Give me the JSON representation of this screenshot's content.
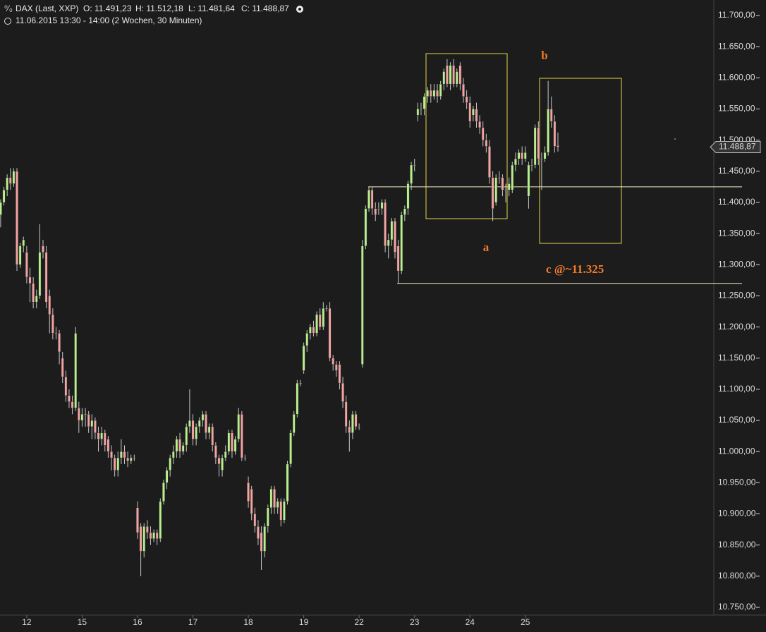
{
  "chart_data": {
    "type": "candlestick",
    "header": {
      "symbol": "DAX (Last, XXP)",
      "open": "O: 11.491,23",
      "high": "H: 11.512,18",
      "low": "L: 11.481,64",
      "close": "C: 11.488,87",
      "period": "11.06.2015 13:30 - 14:00 (2 Wochen, 30 Minuten)"
    },
    "up_color": "#b9f08e",
    "down_color": "#f2a3a3",
    "wick_color": "#c8c8c8",
    "xlim": [
      -0.2,
      218.4
    ],
    "ylim": [
      10710.4,
      11724.9
    ],
    "xticks": [
      {
        "value": 8,
        "label": "12"
      },
      {
        "value": 25,
        "label": "15"
      },
      {
        "value": 42,
        "label": "16"
      },
      {
        "value": 59,
        "label": "17"
      },
      {
        "value": 76,
        "label": "18"
      },
      {
        "value": 93,
        "label": "19"
      },
      {
        "value": 110,
        "label": "22"
      },
      {
        "value": 127,
        "label": "23"
      },
      {
        "value": 144,
        "label": "24"
      },
      {
        "value": 161,
        "label": "25"
      }
    ],
    "yticks": [
      {
        "value": 11700,
        "label": "11.700,00"
      },
      {
        "value": 11650,
        "label": "11.650,00"
      },
      {
        "value": 11600,
        "label": "11.600,00"
      },
      {
        "value": 11550,
        "label": "11.550,00"
      },
      {
        "value": 11500,
        "label": "11.500,00"
      },
      {
        "value": 11450,
        "label": "11.450,00"
      },
      {
        "value": 11400,
        "label": "11.400,00"
      },
      {
        "value": 11350,
        "label": "11.350,00"
      },
      {
        "value": 11300,
        "label": "11.300,00"
      },
      {
        "value": 11250,
        "label": "11.250,00"
      },
      {
        "value": 11200,
        "label": "11.200,00"
      },
      {
        "value": 11150,
        "label": "11.150,00"
      },
      {
        "value": 11100,
        "label": "11.100,00"
      },
      {
        "value": 11050,
        "label": "11.050,00"
      },
      {
        "value": 11000,
        "label": "11.000,00"
      },
      {
        "value": 10950,
        "label": "10.950,00"
      },
      {
        "value": 10900,
        "label": "10.900,00"
      },
      {
        "value": 10850,
        "label": "10.850,00"
      },
      {
        "value": 10800,
        "label": "10.800,00"
      },
      {
        "value": 10750,
        "label": "10.750,00"
      }
    ],
    "last_price": {
      "value": 11488.87,
      "label": "11.488,87"
    },
    "hlines": [
      11425,
      11270
    ],
    "annotations": [
      "a",
      "b",
      "c @~11.325"
    ],
    "ohlc": [
      [
        11380,
        11405,
        11360,
        11400
      ],
      [
        11400,
        11425,
        11395,
        11420
      ],
      [
        11420,
        11445,
        11410,
        11440
      ],
      [
        11440,
        11455,
        11420,
        11430
      ],
      [
        11430,
        11455,
        11425,
        11450
      ],
      [
        11450,
        11455,
        11290,
        11300
      ],
      [
        11300,
        11335,
        11295,
        11330
      ],
      [
        11330,
        11345,
        11320,
        11340
      ],
      [
        11320,
        11330,
        11270,
        11280
      ],
      [
        11280,
        11295,
        11240,
        11270
      ],
      [
        11270,
        11280,
        11230,
        11240
      ],
      [
        11240,
        11260,
        11230,
        11250
      ],
      [
        11250,
        11365,
        11245,
        11320
      ],
      [
        11330,
        11340,
        11310,
        11320
      ],
      [
        11320,
        11330,
        11230,
        11240
      ],
      [
        11250,
        11260,
        11190,
        11220
      ],
      [
        11220,
        11230,
        11180,
        11190
      ],
      [
        11190,
        11200,
        11180,
        11190
      ],
      [
        11190,
        11195,
        11140,
        11160
      ],
      [
        11150,
        11160,
        11110,
        11120
      ],
      [
        11120,
        11130,
        11080,
        11090
      ],
      [
        11090,
        11100,
        11070,
        11080
      ],
      [
        11080,
        11090,
        11060,
        11070
      ],
      [
        11070,
        11200,
        11065,
        11190
      ],
      [
        11070,
        11080,
        11030,
        11050
      ],
      [
        11050,
        11070,
        11040,
        11060
      ],
      [
        11060,
        11070,
        11040,
        11060
      ],
      [
        11060,
        11065,
        11030,
        11040
      ],
      [
        11040,
        11060,
        11020,
        11050
      ],
      [
        11050,
        11055,
        11020,
        11030
      ],
      [
        11030,
        11040,
        11000,
        11020
      ],
      [
        11020,
        11040,
        11010,
        11030
      ],
      [
        11030,
        11035,
        11000,
        11010
      ],
      [
        11020,
        11025,
        10990,
        11000
      ],
      [
        11000,
        11010,
        10970,
        10990
      ],
      [
        10990,
        10995,
        10960,
        10970
      ],
      [
        10970,
        11000,
        10960,
        10990
      ],
      [
        10990,
        11020,
        10980,
        11000
      ],
      [
        11000,
        11010,
        10980,
        10990
      ],
      [
        10990,
        11000,
        10975,
        10985
      ],
      [
        10985,
        10995,
        10980,
        10990
      ],
      [
        10990,
        10995,
        10985,
        10990
      ],
      [
        10910,
        10920,
        10860,
        10870
      ],
      [
        10880,
        10885,
        10800,
        10840
      ],
      [
        10840,
        10885,
        10830,
        10880
      ],
      [
        10880,
        10890,
        10860,
        10870
      ],
      [
        10870,
        10880,
        10850,
        10860
      ],
      [
        10860,
        10875,
        10855,
        10870
      ],
      [
        10870,
        10875,
        10850,
        10860
      ],
      [
        10860,
        10925,
        10855,
        10920
      ],
      [
        10920,
        10955,
        10915,
        10950
      ],
      [
        10950,
        10975,
        10940,
        10970
      ],
      [
        10970,
        10995,
        10960,
        10990
      ],
      [
        10990,
        11010,
        10980,
        11000
      ],
      [
        11000,
        11025,
        10990,
        11020
      ],
      [
        11020,
        11030,
        10990,
        11000
      ],
      [
        11000,
        11015,
        10995,
        11010
      ],
      [
        11010,
        11045,
        11000,
        11040
      ],
      [
        11040,
        11100,
        11030,
        11050
      ],
      [
        11050,
        11060,
        11010,
        11020
      ],
      [
        11020,
        11045,
        11010,
        11040
      ],
      [
        11040,
        11055,
        11030,
        11050
      ],
      [
        11050,
        11065,
        11040,
        11060
      ],
      [
        11060,
        11065,
        11020,
        11030
      ],
      [
        11030,
        11045,
        11020,
        11040
      ],
      [
        11040,
        11045,
        11000,
        11010
      ],
      [
        11010,
        11015,
        10980,
        10990
      ],
      [
        10990,
        10995,
        10960,
        10980
      ],
      [
        10970,
        10995,
        10960,
        10990
      ],
      [
        10990,
        11010,
        10985,
        11000
      ],
      [
        11000,
        11035,
        10995,
        11030
      ],
      [
        11030,
        11035,
        10990,
        11000
      ],
      [
        11000,
        11025,
        10995,
        11020
      ],
      [
        11020,
        11070,
        11015,
        11060
      ],
      [
        11060,
        11065,
        10985,
        10990
      ],
      [
        10990,
        10995,
        10985,
        10990
      ],
      [
        10950,
        10960,
        10910,
        10920
      ],
      [
        10940,
        10945,
        10890,
        10900
      ],
      [
        10900,
        10910,
        10870,
        10880
      ],
      [
        10880,
        10890,
        10850,
        10860
      ],
      [
        10870,
        10880,
        10810,
        10840
      ],
      [
        10840,
        10885,
        10830,
        10880
      ],
      [
        10880,
        10915,
        10870,
        10910
      ],
      [
        10910,
        10945,
        10900,
        10940
      ],
      [
        10940,
        10945,
        10900,
        10910
      ],
      [
        10910,
        10925,
        10900,
        10920
      ],
      [
        10920,
        10925,
        10880,
        10890
      ],
      [
        10890,
        10925,
        10885,
        10920
      ],
      [
        10920,
        10985,
        10915,
        10980
      ],
      [
        10980,
        11035,
        10975,
        11030
      ],
      [
        11030,
        11065,
        11025,
        11060
      ],
      [
        11060,
        11115,
        11055,
        11110
      ],
      [
        11110,
        11115,
        11105,
        11110
      ],
      [
        11130,
        11175,
        11125,
        11170
      ],
      [
        11170,
        11195,
        11160,
        11190
      ],
      [
        11190,
        11205,
        11180,
        11200
      ],
      [
        11200,
        11210,
        11185,
        11190
      ],
      [
        11190,
        11225,
        11185,
        11220
      ],
      [
        11220,
        11230,
        11195,
        11200
      ],
      [
        11200,
        11240,
        11195,
        11230
      ],
      [
        11230,
        11235,
        11225,
        11230
      ],
      [
        11230,
        11240,
        11145,
        11150
      ],
      [
        11150,
        11155,
        11130,
        11140
      ],
      [
        11140,
        11145,
        11120,
        11130
      ],
      [
        11140,
        11145,
        11100,
        11110
      ],
      [
        11110,
        11120,
        11070,
        11080
      ],
      [
        11080,
        11090,
        11030,
        11040
      ],
      [
        11040,
        11050,
        11000,
        11030
      ],
      [
        11030,
        11065,
        11020,
        11060
      ],
      [
        11060,
        11065,
        11035,
        11040
      ],
      [
        11040,
        11045,
        11035,
        11040
      ],
      [
        11140,
        11340,
        11135,
        11330
      ],
      [
        11330,
        11395,
        11325,
        11390
      ],
      [
        11390,
        11425,
        11385,
        11420
      ],
      [
        11420,
        11425,
        11380,
        11390
      ],
      [
        11390,
        11400,
        11370,
        11380
      ],
      [
        11390,
        11400,
        11380,
        11390
      ],
      [
        11390,
        11405,
        11380,
        11400
      ],
      [
        11400,
        11405,
        11320,
        11330
      ],
      [
        11330,
        11350,
        11310,
        11340
      ],
      [
        11340,
        11375,
        11330,
        11370
      ],
      [
        11370,
        11375,
        11310,
        11320
      ],
      [
        11330,
        11340,
        11270,
        11290
      ],
      [
        11290,
        11385,
        11285,
        11380
      ],
      [
        11380,
        11395,
        11370,
        11390
      ],
      [
        11390,
        11435,
        11380,
        11430
      ],
      [
        11430,
        11465,
        11420,
        11460
      ],
      [
        11460,
        11470,
        11450,
        11460
      ],
      [
        11540,
        11560,
        11530,
        11550
      ],
      [
        11550,
        11560,
        11540,
        11550
      ],
      [
        11550,
        11575,
        11540,
        11570
      ],
      [
        11570,
        11585,
        11560,
        11580
      ],
      [
        11580,
        11590,
        11560,
        11570
      ],
      [
        11570,
        11590,
        11565,
        11580
      ],
      [
        11580,
        11590,
        11560,
        11570
      ],
      [
        11570,
        11595,
        11565,
        11590
      ],
      [
        11590,
        11615,
        11580,
        11610
      ],
      [
        11620,
        11630,
        11585,
        11590
      ],
      [
        11590,
        11625,
        11580,
        11620
      ],
      [
        11620,
        11630,
        11585,
        11590
      ],
      [
        11590,
        11615,
        11585,
        11610
      ],
      [
        11620,
        11625,
        11580,
        11590
      ],
      [
        11590,
        11600,
        11560,
        11570
      ],
      [
        11570,
        11580,
        11550,
        11560
      ],
      [
        11560,
        11570,
        11520,
        11530
      ],
      [
        11540,
        11555,
        11530,
        11550
      ],
      [
        11550,
        11560,
        11520,
        11530
      ],
      [
        11530,
        11540,
        11510,
        11520
      ],
      [
        11520,
        11530,
        11490,
        11500
      ],
      [
        11500,
        11510,
        11480,
        11490
      ],
      [
        11490,
        11500,
        11430,
        11440
      ],
      [
        11440,
        11450,
        11370,
        11390
      ],
      [
        11400,
        11445,
        11395,
        11440
      ],
      [
        11440,
        11450,
        11430,
        11440
      ],
      [
        11440,
        11445,
        11410,
        11420
      ],
      [
        11420,
        11430,
        11400,
        11420
      ],
      [
        11420,
        11440,
        11410,
        11430
      ],
      [
        11420,
        11465,
        11415,
        11460
      ],
      [
        11460,
        11480,
        11450,
        11470
      ],
      [
        11470,
        11485,
        11460,
        11480
      ],
      [
        11480,
        11490,
        11460,
        11470
      ],
      [
        11470,
        11490,
        11465,
        11480
      ],
      [
        11410,
        11465,
        11390,
        11460
      ],
      [
        11460,
        11470,
        11450,
        11460
      ],
      [
        11460,
        11525,
        11455,
        11520
      ],
      [
        11520,
        11530,
        11460,
        11470
      ],
      [
        11470,
        11480,
        11420,
        11470
      ],
      [
        11470,
        11490,
        11465,
        11480
      ],
      [
        11480,
        11595,
        11475,
        11550
      ],
      [
        11550,
        11570,
        11520,
        11530
      ],
      [
        11530,
        11540,
        11480,
        11490
      ],
      [
        11491.23,
        11512.18,
        11481.64,
        11488.87
      ]
    ]
  }
}
